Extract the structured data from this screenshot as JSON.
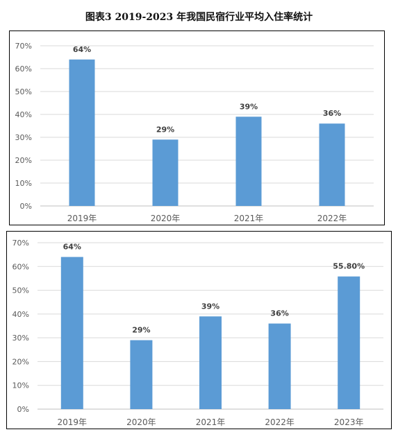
{
  "figure": {
    "title": "图表3    2019-2023 年我国民宿行业平均入住率统计"
  },
  "colors": {
    "bar": "#5B9BD5",
    "grid": "#D9D9D9",
    "axis": "#BFBFBF"
  },
  "chart_data": [
    {
      "type": "bar",
      "categories": [
        "2019年",
        "2020年",
        "2021年",
        "2022年"
      ],
      "values": [
        64,
        29,
        39,
        36
      ],
      "data_labels": [
        "64%",
        "29%",
        "39%",
        "36%"
      ],
      "ylim": [
        0,
        70
      ],
      "y_ticks": [
        "0%",
        "10%",
        "20%",
        "30%",
        "40%",
        "50%",
        "60%",
        "70%"
      ],
      "grid": true
    },
    {
      "type": "bar",
      "categories": [
        "2019年",
        "2020年",
        "2021年",
        "2022年",
        "2023年"
      ],
      "values": [
        64,
        29,
        39,
        36,
        55.8
      ],
      "data_labels": [
        "64%",
        "29%",
        "39%",
        "36%",
        "55.80%"
      ],
      "ylim": [
        0,
        70
      ],
      "y_ticks": [
        "0%",
        "10%",
        "20%",
        "30%",
        "40%",
        "50%",
        "60%",
        "70%"
      ],
      "grid": true
    }
  ]
}
